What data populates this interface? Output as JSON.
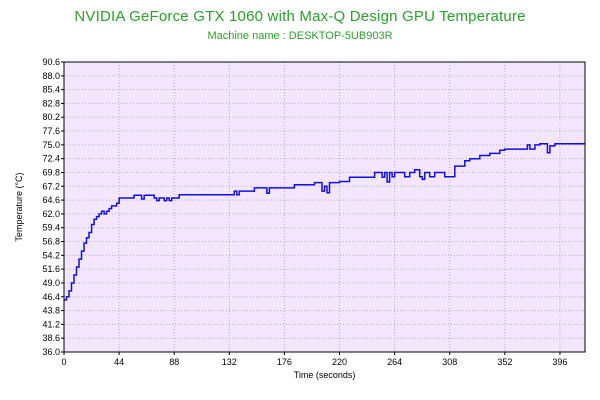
{
  "chart_data": {
    "type": "line",
    "title": "NVIDIA GeForce GTX 1060 with Max-Q Design GPU Temperature",
    "subtitle": "Machine name : DESKTOP-5UB903R",
    "xlabel": "Time (seconds)",
    "ylabel": "Temperature (°C)",
    "xlim": [
      0,
      416
    ],
    "ylim": [
      36.0,
      90.6
    ],
    "xticks": [
      "0",
      "44",
      "88",
      "132",
      "176",
      "220",
      "264",
      "308",
      "352",
      "396"
    ],
    "yticks": [
      "36.0",
      "38.6",
      "41.2",
      "43.8",
      "46.4",
      "49.0",
      "51.6",
      "54.2",
      "56.8",
      "59.4",
      "62.0",
      "64.6",
      "67.2",
      "69.8",
      "72.4",
      "75.0",
      "77.6",
      "80.2",
      "82.8",
      "85.4",
      "88.0",
      "90.6"
    ],
    "grid": true,
    "background_color": "#f5e6ff",
    "line_color": "#1010e0",
    "series": [
      {
        "x": [
          0,
          2,
          4,
          6,
          8,
          10,
          12,
          14,
          16,
          18,
          20,
          22,
          24,
          26,
          28,
          30,
          32,
          34,
          36,
          38,
          40,
          42,
          44,
          48,
          52,
          56,
          60,
          62,
          64,
          66,
          68,
          70,
          72,
          74,
          76,
          78,
          80,
          82,
          84,
          86,
          88,
          92,
          96,
          100,
          104,
          108,
          112,
          116,
          120,
          124,
          128,
          132,
          136,
          138,
          140,
          144,
          148,
          152,
          156,
          160,
          162,
          164,
          168,
          172,
          176,
          180,
          184,
          188,
          192,
          196,
          200,
          204,
          206,
          208,
          210,
          212,
          216,
          220,
          224,
          228,
          232,
          236,
          240,
          244,
          248,
          252,
          254,
          256,
          258,
          260,
          262,
          264,
          268,
          272,
          276,
          280,
          284,
          286,
          288,
          292,
          296,
          300,
          304,
          308,
          312,
          316,
          320,
          324,
          328,
          332,
          336,
          340,
          344,
          348,
          352,
          356,
          360,
          364,
          368,
          370,
          372,
          376,
          380,
          384,
          386,
          388,
          392,
          396,
          400,
          404,
          408,
          412,
          416
        ],
        "y": [
          45.8,
          46.4,
          47.5,
          49.0,
          50.5,
          52.0,
          53.5,
          55.0,
          56.5,
          57.5,
          58.5,
          60.0,
          61.0,
          61.5,
          62.0,
          62.5,
          62.0,
          62.5,
          63.0,
          63.5,
          63.5,
          64.0,
          65.0,
          65.0,
          65.0,
          65.5,
          65.5,
          64.8,
          65.5,
          65.5,
          65.5,
          65.5,
          65.0,
          64.5,
          65.0,
          65.0,
          64.5,
          65.0,
          64.5,
          65.0,
          65.0,
          65.6,
          65.6,
          65.6,
          65.6,
          65.6,
          65.6,
          65.6,
          65.6,
          65.6,
          65.6,
          65.6,
          66.3,
          65.6,
          66.3,
          66.3,
          66.3,
          66.9,
          66.9,
          66.9,
          65.9,
          66.9,
          66.9,
          66.9,
          66.9,
          66.9,
          67.5,
          67.5,
          67.5,
          67.5,
          67.9,
          67.9,
          66.3,
          67.2,
          66.0,
          67.9,
          67.9,
          68.1,
          68.1,
          68.9,
          68.9,
          68.9,
          68.9,
          68.9,
          69.8,
          69.8,
          68.9,
          69.8,
          68.0,
          69.8,
          69.0,
          69.8,
          69.8,
          69.0,
          69.8,
          70.3,
          69.0,
          68.5,
          69.8,
          69.0,
          69.8,
          69.8,
          69.0,
          69.0,
          71.0,
          71.0,
          72.0,
          72.4,
          72.4,
          73.0,
          73.0,
          73.4,
          73.4,
          74.0,
          74.2,
          74.2,
          74.2,
          74.2,
          74.2,
          75.0,
          74.2,
          75.0,
          75.2,
          75.2,
          73.5,
          74.8,
          75.2,
          75.2,
          75.2,
          75.2,
          75.2,
          75.2,
          75.2
        ]
      }
    ]
  }
}
